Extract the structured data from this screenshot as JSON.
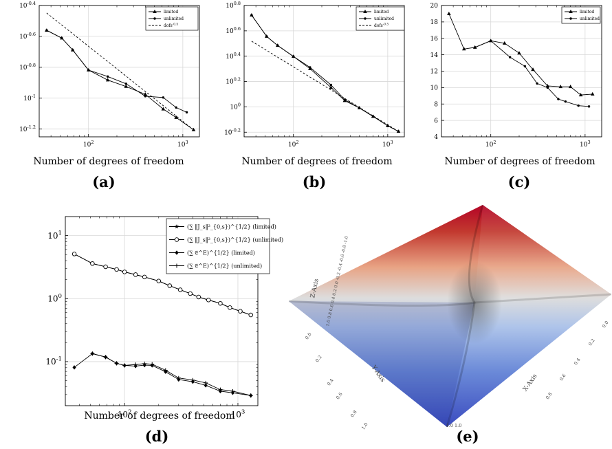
{
  "chart_data": [
    {
      "type": "line",
      "panel": "(a)",
      "xlabel": "Number of degrees of freedom",
      "ylabel": "",
      "xscale": "log",
      "yscale": "log",
      "xlim": [
        30,
        1500
      ],
      "ylim": [
        0.0562,
        0.398
      ],
      "xticks": [
        {
          "v": 100,
          "label": "10^2"
        },
        {
          "v": 1000,
          "label": "10^3"
        }
      ],
      "yticks": [
        {
          "v": 0.0631,
          "label": "10^-1.2"
        },
        {
          "v": 0.1,
          "label": "10^-1"
        },
        {
          "v": 0.1585,
          "label": "10^-0.8"
        },
        {
          "v": 0.2512,
          "label": "10^-0.6"
        },
        {
          "v": 0.3981,
          "label": "10^-0.4"
        }
      ],
      "grid": true,
      "legend_position": "top-right",
      "series": [
        {
          "name": "limited",
          "style": "solid",
          "marker": "triangle",
          "x": [
            36,
            52,
            68,
            100,
            160,
            250,
            400,
            620,
            850,
            1300
          ],
          "y": [
            0.275,
            0.245,
            0.205,
            0.152,
            0.131,
            0.119,
            0.106,
            0.085,
            0.075,
            0.0624
          ]
        },
        {
          "name": "unlimited",
          "style": "solid",
          "marker": "dot",
          "x": [
            36,
            52,
            68,
            100,
            160,
            250,
            400,
            620,
            850,
            1100
          ],
          "y": [
            0.275,
            0.245,
            0.205,
            0.152,
            0.138,
            0.124,
            0.103,
            0.101,
            0.087,
            0.081
          ]
        },
        {
          "name": "dofs^-0.5",
          "style": "dashed",
          "marker": "none",
          "x": [
            36,
            1300
          ],
          "y": [
            0.356,
            0.0624
          ]
        }
      ]
    },
    {
      "type": "line",
      "panel": "(b)",
      "xlabel": "Number of degrees of freedom",
      "ylabel": "",
      "xscale": "log",
      "yscale": "log",
      "xlim": [
        30,
        1500
      ],
      "ylim": [
        0.58,
        6.31
      ],
      "xticks": [
        {
          "v": 100,
          "label": "10^2"
        },
        {
          "v": 1000,
          "label": "10^3"
        }
      ],
      "yticks": [
        {
          "v": 0.631,
          "label": "10^-0.2"
        },
        {
          "v": 1,
          "label": "10^0"
        },
        {
          "v": 1.585,
          "label": "10^0.2"
        },
        {
          "v": 2.512,
          "label": "10^0.4"
        },
        {
          "v": 3.981,
          "label": "10^0.6"
        },
        {
          "v": 6.31,
          "label": "10^0.8"
        }
      ],
      "grid": true,
      "legend_position": "top-right",
      "series": [
        {
          "name": "limited",
          "style": "solid",
          "marker": "triangle",
          "x": [
            36,
            52,
            68,
            100,
            150,
            250,
            350,
            500,
            700,
            1000,
            1300
          ],
          "y": [
            5.3,
            3.6,
            3.05,
            2.5,
            2.0,
            1.42,
            1.12,
            0.98,
            0.84,
            0.71,
            0.64
          ]
        },
        {
          "name": "unlimited",
          "style": "solid",
          "marker": "dot",
          "x": [
            36,
            52,
            68,
            100,
            150,
            250,
            350,
            500,
            700,
            1000,
            1300
          ],
          "y": [
            5.3,
            3.6,
            3.05,
            2.5,
            2.05,
            1.49,
            1.14,
            0.98,
            0.84,
            0.71,
            0.64
          ]
        },
        {
          "name": "dofs^-0.5",
          "style": "dashed",
          "marker": "none",
          "x": [
            36,
            1300
          ],
          "y": [
            3.3,
            0.64
          ]
        }
      ]
    },
    {
      "type": "line",
      "panel": "(c)",
      "xlabel": "Number of degrees of freedom",
      "ylabel": "",
      "xscale": "log",
      "yscale": "linear",
      "xlim": [
        30,
        1500
      ],
      "ylim": [
        4,
        20
      ],
      "xticks": [
        {
          "v": 100,
          "label": "10^2"
        },
        {
          "v": 1000,
          "label": "10^3"
        }
      ],
      "yticks": [
        {
          "v": 4,
          "label": "4"
        },
        {
          "v": 6,
          "label": "6"
        },
        {
          "v": 8,
          "label": "8"
        },
        {
          "v": 10,
          "label": "10"
        },
        {
          "v": 12,
          "label": "12"
        },
        {
          "v": 14,
          "label": "14"
        },
        {
          "v": 16,
          "label": "16"
        },
        {
          "v": 18,
          "label": "18"
        },
        {
          "v": 20,
          "label": "20"
        }
      ],
      "grid": true,
      "legend_position": "top-right",
      "series": [
        {
          "name": "limited",
          "style": "solid",
          "marker": "triangle",
          "x": [
            36,
            52,
            68,
            100,
            140,
            200,
            280,
            400,
            550,
            700,
            900,
            1200
          ],
          "y": [
            19.0,
            14.7,
            14.9,
            15.7,
            15.4,
            14.2,
            12.2,
            10.2,
            10.1,
            10.1,
            9.1,
            9.2
          ]
        },
        {
          "name": "unlimited",
          "style": "solid",
          "marker": "dot",
          "x": [
            68,
            100,
            160,
            230,
            310,
            400,
            520,
            620,
            850,
            1100
          ],
          "y": [
            14.9,
            15.7,
            13.7,
            12.6,
            10.5,
            10.0,
            8.6,
            8.3,
            7.8,
            7.7
          ]
        }
      ]
    },
    {
      "type": "line",
      "panel": "(d)",
      "xlabel": "Number of degrees of freedom",
      "ylabel": "",
      "xscale": "log",
      "yscale": "log",
      "xlim": [
        30,
        1500
      ],
      "ylim": [
        0.02,
        20
      ],
      "xticks": [
        {
          "v": 100,
          "label": "10^2"
        },
        {
          "v": 1000,
          "label": "10^3"
        }
      ],
      "yticks": [
        {
          "v": 0.1,
          "label": "10^-1"
        },
        {
          "v": 1,
          "label": "10^0"
        },
        {
          "v": 10,
          "label": "10^1"
        }
      ],
      "grid": true,
      "legend_position": "top-right",
      "series": [
        {
          "name": "(∑ ‖J_s‖²_{0,s})^{1/2} (limited)",
          "style": "solid",
          "marker": "star",
          "x": [
            36,
            52,
            68,
            85,
            100,
            125,
            150,
            200,
            250,
            310,
            380,
            450,
            550,
            700,
            850,
            1050,
            1300
          ],
          "y": [
            5.1,
            3.6,
            3.2,
            2.9,
            2.65,
            2.4,
            2.2,
            1.9,
            1.6,
            1.38,
            1.2,
            1.06,
            0.95,
            0.84,
            0.72,
            0.63,
            0.55
          ]
        },
        {
          "name": "(∑ ‖J_s‖²_{0,s})^{1/2} (unlimited)",
          "style": "solid",
          "marker": "circle",
          "x": [
            36,
            52,
            68,
            85,
            100,
            125,
            150,
            200,
            250,
            310,
            380,
            450,
            550,
            700,
            850,
            1050,
            1300
          ],
          "y": [
            5.1,
            3.6,
            3.2,
            2.9,
            2.65,
            2.4,
            2.2,
            1.9,
            1.6,
            1.38,
            1.2,
            1.06,
            0.95,
            0.84,
            0.72,
            0.63,
            0.55
          ]
        },
        {
          "name": "(∑ 𝔈^E)^{1/2} (limited)",
          "style": "solid",
          "marker": "diamond",
          "x": [
            36,
            52,
            68,
            85,
            100,
            125,
            150,
            175,
            230,
            300,
            400,
            520,
            700,
            900,
            1300
          ],
          "y": [
            0.081,
            0.134,
            0.118,
            0.094,
            0.087,
            0.085,
            0.088,
            0.087,
            0.069,
            0.052,
            0.048,
            0.042,
            0.034,
            0.032,
            0.029
          ]
        },
        {
          "name": "(∑ 𝔈^E)^{1/2} (unlimited)",
          "style": "solid",
          "marker": "plus",
          "x": [
            52,
            68,
            85,
            100,
            125,
            150,
            175,
            230,
            300,
            400,
            520,
            700,
            900,
            1300
          ],
          "y": [
            0.134,
            0.118,
            0.094,
            0.087,
            0.09,
            0.093,
            0.091,
            0.073,
            0.055,
            0.051,
            0.046,
            0.036,
            0.034,
            0.029
          ]
        }
      ]
    },
    {
      "type": "surface",
      "panel": "(e)",
      "axis_labels": {
        "x": "X-Axis",
        "y": "Y-Axis",
        "z": "Z-Axis"
      },
      "x_ticks": [
        "0.0",
        "0.2",
        "0.4",
        "0.6",
        "0.8",
        "1.0"
      ],
      "y_ticks": [
        "0.0",
        "0.2",
        "0.4",
        "0.6",
        "0.8",
        "1.0"
      ],
      "z_ticks": [
        "1.0",
        "0.8",
        "0.6",
        "0.4",
        "0.2",
        "0.0",
        "-0.2",
        "-0.4",
        "-0.6",
        "-0.8",
        "-1.0"
      ],
      "colormap": "coolwarm",
      "colors": {
        "low": "#3b4cc0",
        "mid": "#dddddd",
        "high": "#b40426"
      }
    }
  ]
}
